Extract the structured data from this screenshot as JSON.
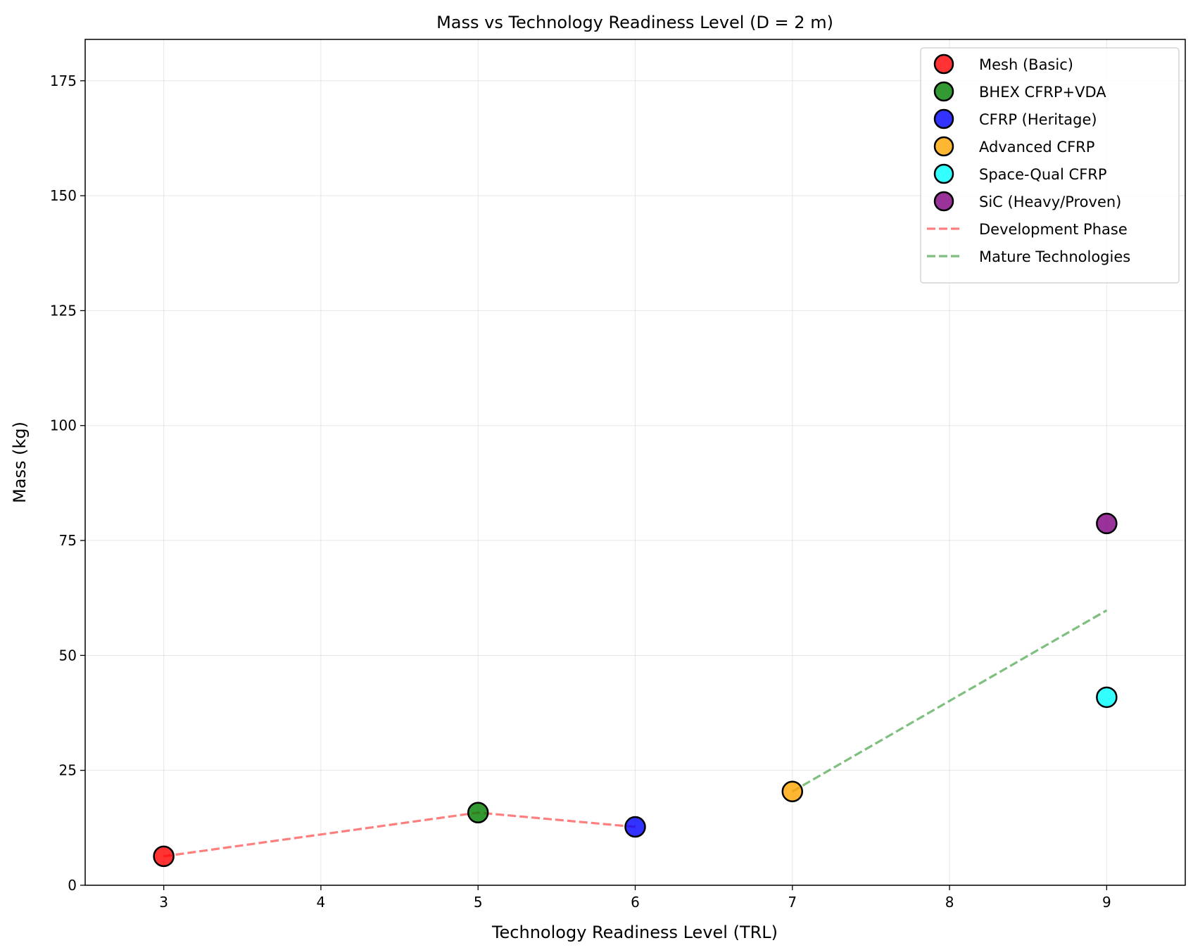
{
  "chart_data": {
    "type": "scatter",
    "title": "Mass vs Technology Readiness Level (D = 2 m)",
    "xlabel": "Technology Readiness Level (TRL)",
    "ylabel": "Mass (kg)",
    "xlim": [
      2.5,
      9.5
    ],
    "ylim": [
      0,
      184
    ],
    "xticks": [
      3,
      4,
      5,
      6,
      7,
      8,
      9
    ],
    "yticks": [
      0,
      25,
      50,
      75,
      100,
      125,
      150,
      175
    ],
    "grid": true,
    "legend_position": "top-right",
    "series": [
      {
        "name": "Mesh (Basic)",
        "color": "#ff0000",
        "points": [
          {
            "x": 3,
            "y": 6.3
          }
        ]
      },
      {
        "name": "BHEX CFRP+VDA",
        "color": "#008000",
        "points": [
          {
            "x": 5,
            "y": 15.8
          }
        ]
      },
      {
        "name": "CFRP (Heritage)",
        "color": "#0000ff",
        "points": [
          {
            "x": 6,
            "y": 12.7
          }
        ]
      },
      {
        "name": "Advanced CFRP",
        "color": "#ffa500",
        "points": [
          {
            "x": 7,
            "y": 20.4
          }
        ]
      },
      {
        "name": "Space-Qual CFRP",
        "color": "#00ffff",
        "points": [
          {
            "x": 9,
            "y": 40.9
          }
        ]
      },
      {
        "name": "SiC (Heavy/Proven)",
        "color": "#800080",
        "points": [
          {
            "x": 9,
            "y": 78.7
          }
        ]
      }
    ],
    "lines": [
      {
        "name": "Development Phase",
        "color": "#ff0000",
        "style": "dashed",
        "points": [
          {
            "x": 3,
            "y": 6.3
          },
          {
            "x": 5,
            "y": 15.8
          },
          {
            "x": 6,
            "y": 12.7
          }
        ]
      },
      {
        "name": "Mature Technologies",
        "color": "#008000",
        "style": "dashed",
        "points": [
          {
            "x": 7,
            "y": 20.4
          },
          {
            "x": 9,
            "y": 59.8
          }
        ]
      }
    ]
  }
}
